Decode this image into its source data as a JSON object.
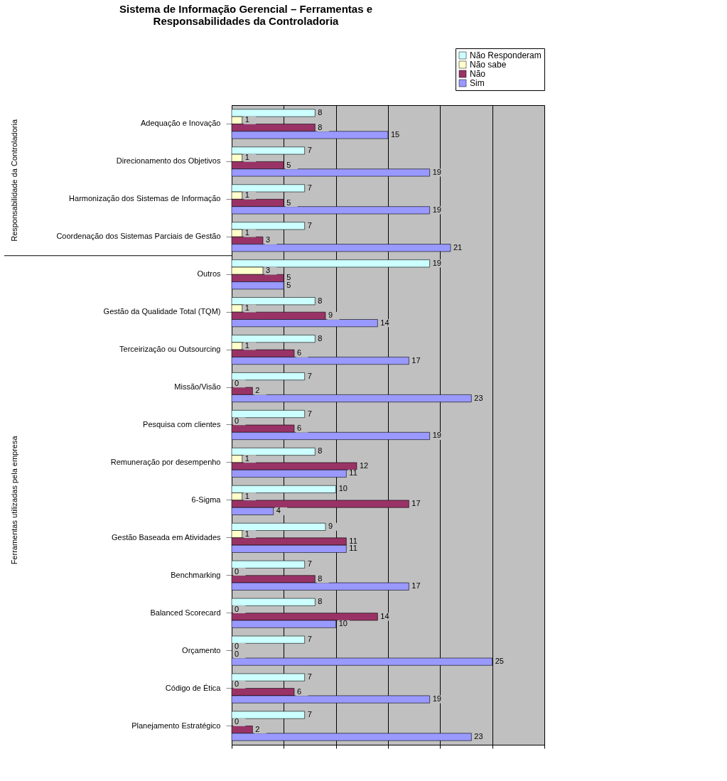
{
  "chart_data": {
    "type": "bar",
    "orientation": "horizontal",
    "title": "Sistema de Informação Gerencial – Ferramentas e Responsabilidades da Controladoria",
    "categories": [
      "Adequação e Inovação",
      "Direcionamento dos Objetivos",
      "Harmonização dos Sistemas de Informação",
      "Coordenação dos Sistemas Parciais de Gestão",
      "Outros",
      "Gestão da Qualidade Total (TQM)",
      "Terceirização ou Outsourcing",
      "Missão/Visão",
      "Pesquisa com clientes",
      "Remuneração por desempenho",
      "6-Sigma",
      "Gestão Baseada em Atividades ",
      "Benchmarking",
      "Balanced Scorecard",
      "Orçamento",
      "Código de Ética",
      "Planejamento Estratégico"
    ],
    "series": [
      {
        "name": "Não Responderam",
        "color": "#ccffff",
        "values": [
          8,
          7,
          7,
          7,
          19,
          8,
          8,
          7,
          7,
          8,
          10,
          9,
          7,
          8,
          7,
          7,
          7
        ]
      },
      {
        "name": "Não sabe",
        "color": "#ffffcc",
        "values": [
          1,
          1,
          1,
          1,
          3,
          1,
          1,
          0,
          0,
          1,
          1,
          1,
          0,
          0,
          0,
          0,
          0
        ]
      },
      {
        "name": "Não",
        "color": "#993366",
        "values": [
          8,
          5,
          5,
          3,
          5,
          9,
          6,
          2,
          6,
          12,
          17,
          11,
          8,
          14,
          0,
          6,
          2
        ]
      },
      {
        "name": "Sim",
        "color": "#9999ff",
        "values": [
          15,
          19,
          19,
          21,
          5,
          14,
          17,
          23,
          19,
          11,
          4,
          11,
          17,
          10,
          25,
          19,
          23
        ]
      }
    ],
    "xlim": [
      0,
      30
    ],
    "xticks": [
      {
        "value": 0,
        "label": null
      },
      {
        "value": 5,
        "label": null
      },
      {
        "value": 10,
        "label": null
      },
      {
        "value": 15,
        "label": null
      },
      {
        "value": 20,
        "label": null
      },
      {
        "value": 25,
        "label": null
      },
      {
        "value": 30,
        "label": null
      }
    ],
    "grid": "x",
    "tick_labels": "y",
    "data_labels": true,
    "legend": "top right",
    "annotations": [
      "Responsabilidade da Controladoria",
      "Ferramentas utilizadas pela empresa"
    ]
  }
}
